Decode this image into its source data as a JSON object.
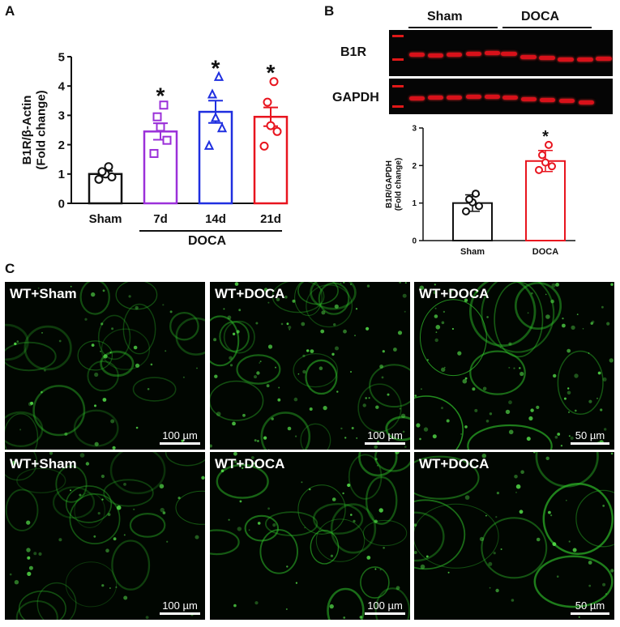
{
  "panels": {
    "a_label": "A",
    "b_label": "B",
    "c_label": "C"
  },
  "chart_data": [
    {
      "type": "bar",
      "panel": "A",
      "categories": [
        "Sham",
        "7d",
        "14d",
        "21d"
      ],
      "values": [
        1.0,
        2.45,
        3.12,
        2.95
      ],
      "errors": [
        0.1,
        0.28,
        0.38,
        0.32
      ],
      "colors": [
        "#111111",
        "#9b30d9",
        "#1f2fe0",
        "#e8141e"
      ],
      "markers": [
        "circle",
        "square",
        "triangle",
        "circle"
      ],
      "points": [
        [
          0.82,
          0.9,
          1.0,
          1.08,
          1.25
        ],
        [
          1.7,
          2.15,
          2.6,
          2.95,
          3.35
        ],
        [
          1.95,
          2.55,
          2.9,
          3.7,
          4.3
        ],
        [
          1.95,
          2.45,
          2.65,
          3.45,
          4.15
        ]
      ],
      "significance": [
        "",
        "*",
        "*",
        "*"
      ],
      "ylabel_line1": "B1R/β-Actin",
      "ylabel_line2": "(Fold change)",
      "ylim": [
        0,
        5
      ],
      "yticks": [
        0,
        1,
        2,
        3,
        4,
        5
      ],
      "group_label": "DOCA",
      "group_categories": [
        "7d",
        "14d",
        "21d"
      ]
    },
    {
      "type": "bar",
      "panel": "B",
      "categories": [
        "Sham",
        "DOCA"
      ],
      "values": [
        1.0,
        2.12
      ],
      "errors": [
        0.22,
        0.28
      ],
      "colors": [
        "#111111",
        "#e8141e"
      ],
      "markers": [
        "circle",
        "circle"
      ],
      "points": [
        [
          0.78,
          0.92,
          1.02,
          1.1,
          1.25
        ],
        [
          1.88,
          1.98,
          2.08,
          2.28,
          2.55
        ]
      ],
      "significance": [
        "",
        "*"
      ],
      "ylabel_line1": "B1R/GAPDH",
      "ylabel_line2": "(Fold change)",
      "ylim": [
        0,
        3
      ],
      "yticks": [
        0,
        1,
        2,
        3
      ]
    }
  ],
  "blot": {
    "sham_label": "Sham",
    "doca_label": "DOCA",
    "row1_label": "B1R",
    "row2_label": "GAPDH"
  },
  "micrographs": [
    {
      "label": "WT+Sham",
      "scale": "100 µm"
    },
    {
      "label": "WT+DOCA",
      "scale": "100 µm"
    },
    {
      "label": "WT+DOCA",
      "scale": "50 µm"
    },
    {
      "label": "WT+Sham",
      "scale": "100 µm"
    },
    {
      "label": "WT+DOCA",
      "scale": "100 µm"
    },
    {
      "label": "WT+DOCA",
      "scale": "50 µm"
    }
  ]
}
